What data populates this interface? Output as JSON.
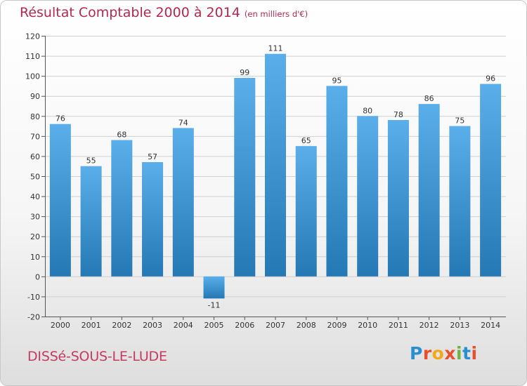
{
  "header": {
    "title": "Résultat Comptable 2000 à 2014",
    "subtitle": "(en milliers d'€)"
  },
  "footer": {
    "town": "DISSé-SOUS-LE-LUDE",
    "logo": "Proxiti",
    "logo_colors": [
      "#2a8fd1",
      "#e94f2e",
      "#f0a81c",
      "#e94f2e",
      "#6cb33f",
      "#2a8fd1",
      "#e94f2e"
    ]
  },
  "chart_data": {
    "type": "bar",
    "categories": [
      "2000",
      "2001",
      "2002",
      "2003",
      "2004",
      "2005",
      "2006",
      "2007",
      "2008",
      "2009",
      "2010",
      "2011",
      "2012",
      "2013",
      "2014"
    ],
    "values": [
      76,
      55,
      68,
      57,
      74,
      -11,
      99,
      111,
      65,
      95,
      80,
      78,
      86,
      75,
      96
    ],
    "data_labels": [
      "76",
      "55",
      "68",
      "57",
      "74",
      "-11",
      "99",
      "111",
      "65",
      "95",
      "80",
      "78",
      "86",
      "75",
      "96"
    ],
    "title": "Résultat Comptable 2000 à 2014",
    "xlabel": "",
    "ylabel": "",
    "ylim": [
      -20,
      120
    ],
    "yticks": [
      -20,
      -10,
      0,
      10,
      20,
      30,
      40,
      50,
      60,
      70,
      80,
      90,
      100,
      110,
      120
    ],
    "grid": true,
    "colors": {
      "bar_top": "#5aaeea",
      "bar_bottom": "#2478b4",
      "grid": "#d0d0d0",
      "text": "#333333"
    }
  }
}
